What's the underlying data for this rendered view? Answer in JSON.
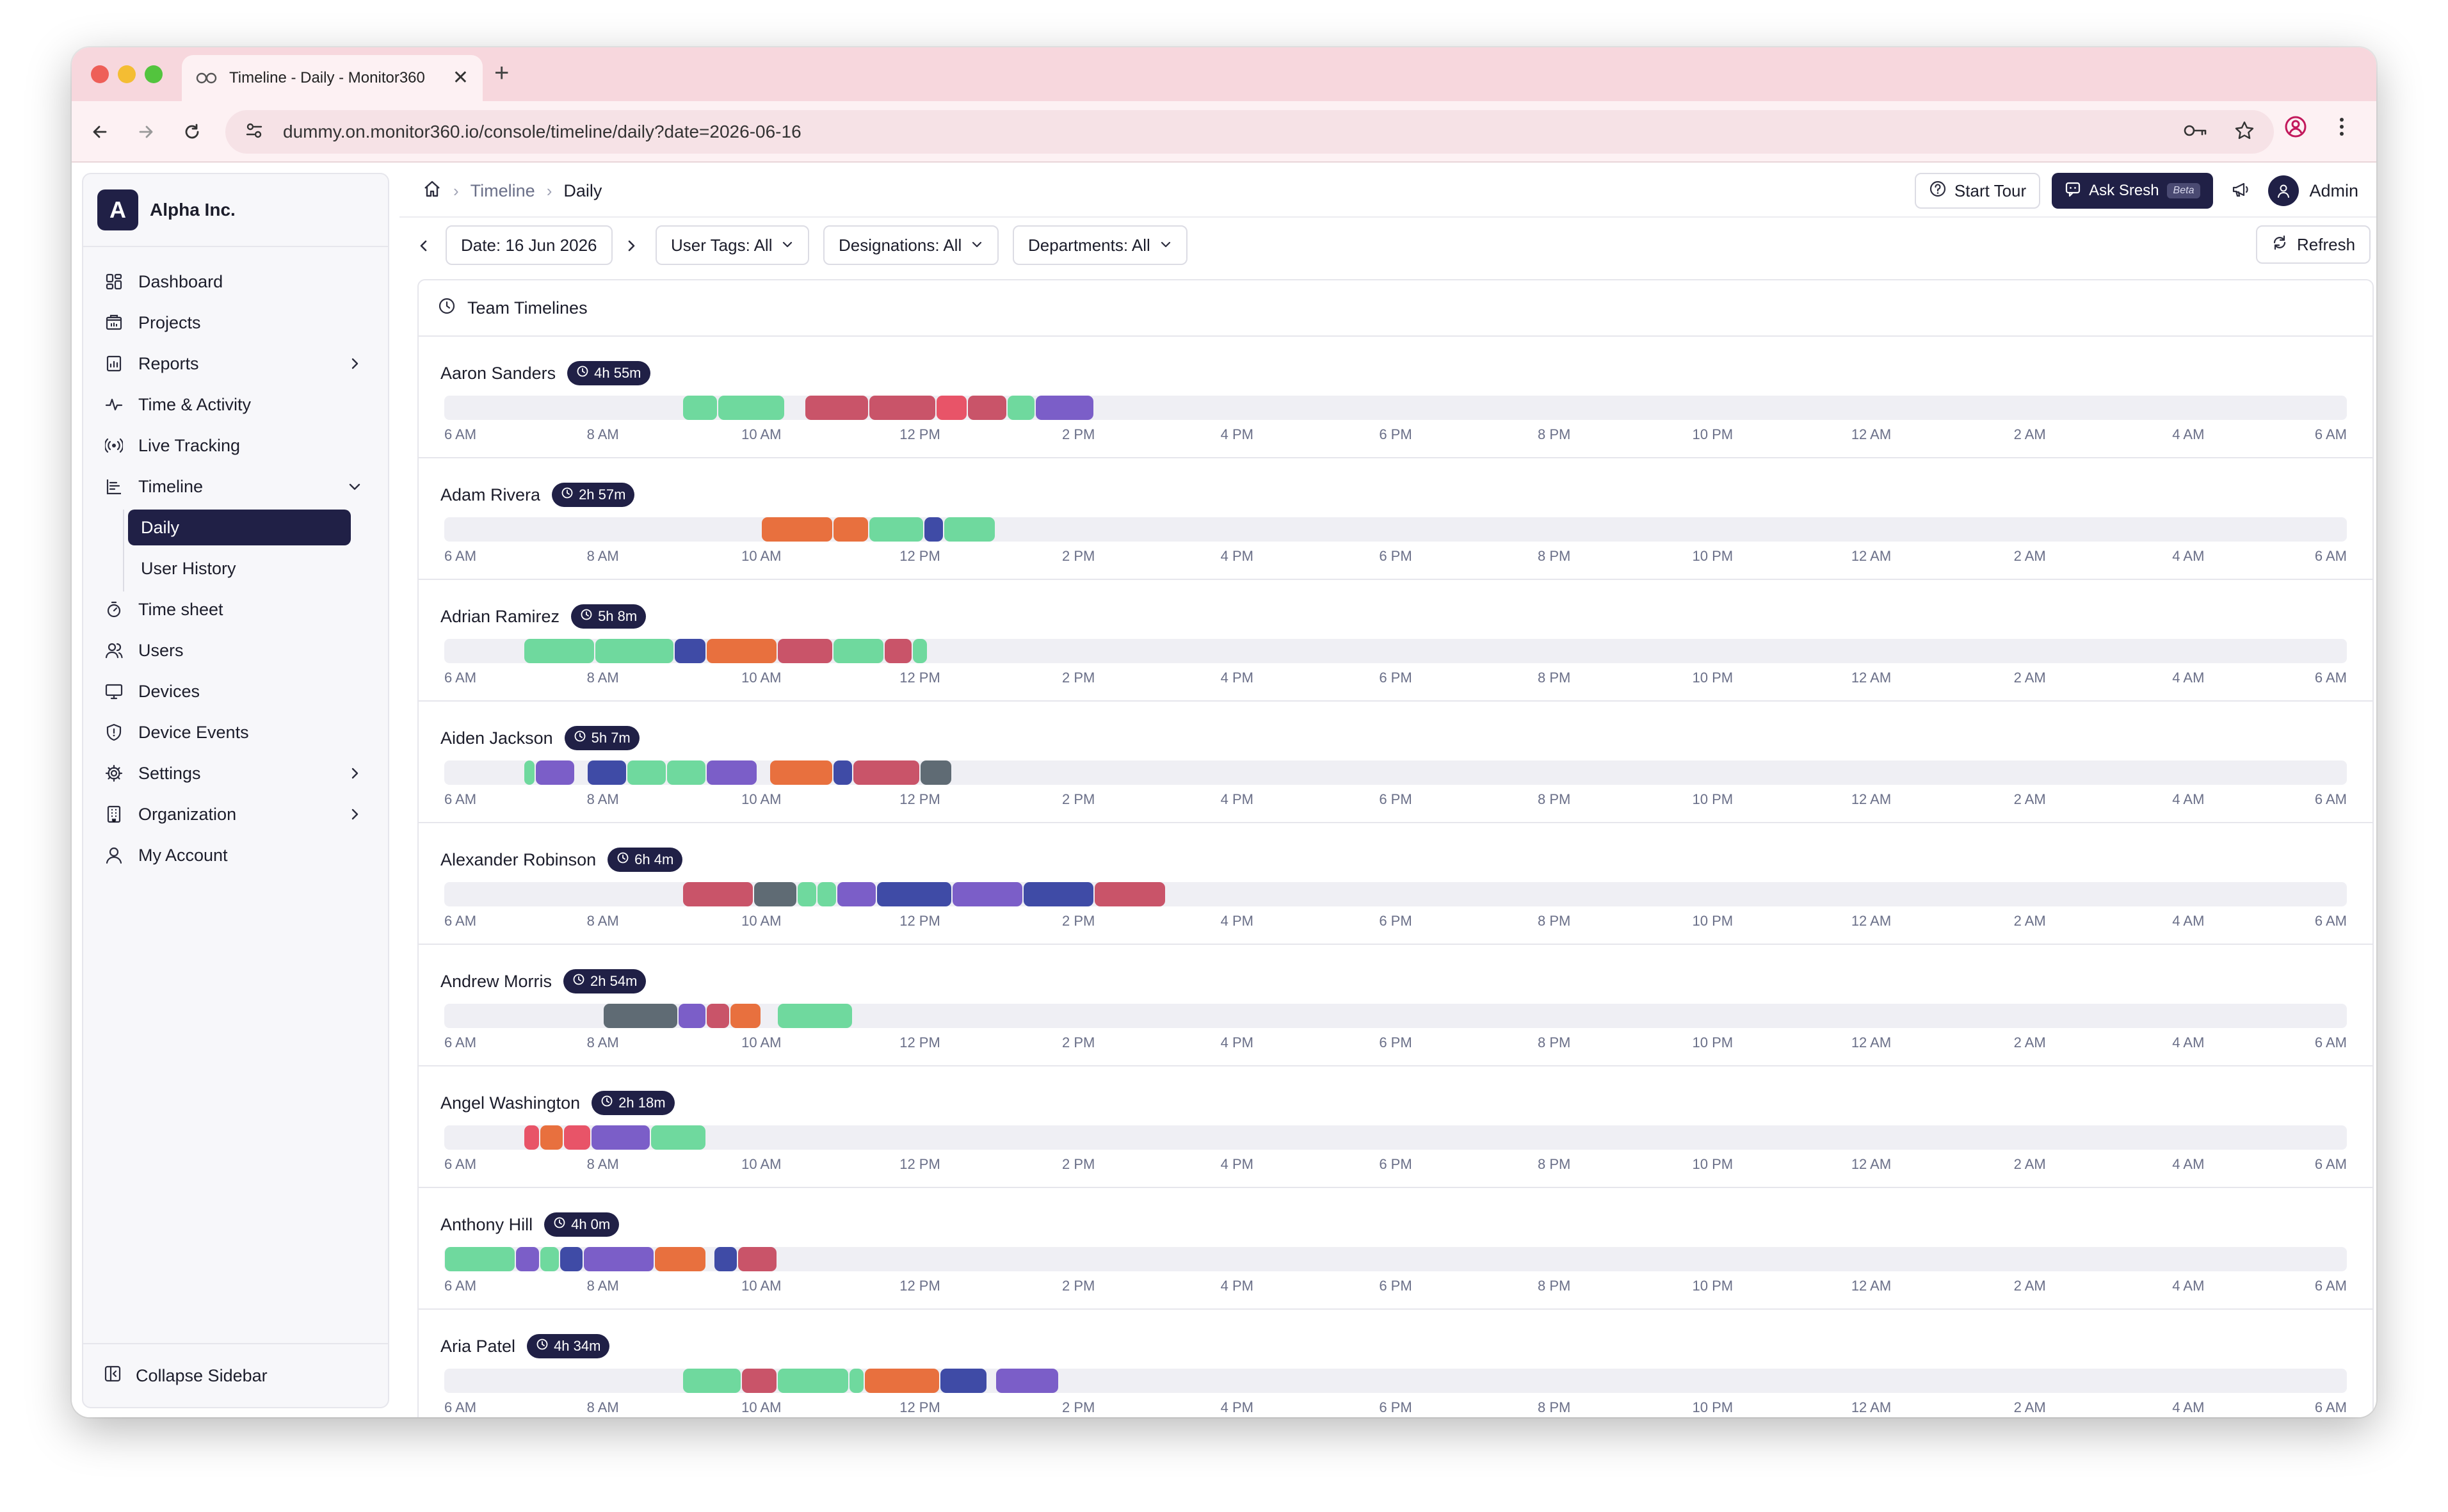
{
  "browser": {
    "tab_title": "Timeline - Daily - Monitor360",
    "tab_close": "✕",
    "new_tab": "+",
    "url": "dummy.on.monitor360.io/console/timeline/daily?date=2026-06-16"
  },
  "sidebar": {
    "brand_initial": "A",
    "brand_name": "Alpha Inc.",
    "items": [
      {
        "label": "Dashboard",
        "icon": "dashboard-icon"
      },
      {
        "label": "Projects",
        "icon": "projects-icon"
      },
      {
        "label": "Reports",
        "icon": "reports-icon"
      },
      {
        "label": "Time & Activity",
        "icon": "activity-icon"
      },
      {
        "label": "Live Tracking",
        "icon": "live-tracking-icon"
      },
      {
        "label": "Timeline",
        "icon": "timeline-icon"
      },
      {
        "label": "Time sheet",
        "icon": "timer-icon"
      },
      {
        "label": "Users",
        "icon": "users-icon"
      },
      {
        "label": "Devices",
        "icon": "monitor-icon"
      },
      {
        "label": "Device Events",
        "icon": "shield-icon"
      },
      {
        "label": "Settings",
        "icon": "gear-icon"
      },
      {
        "label": "Organization",
        "icon": "building-icon"
      },
      {
        "label": "My Account",
        "icon": "user-icon"
      }
    ],
    "timeline_sub": [
      "Daily",
      "User History"
    ],
    "collapse_label": "Collapse Sidebar"
  },
  "header": {
    "breadcrumb": [
      "Timeline",
      "Daily"
    ],
    "start_tour": "Start Tour",
    "ask": "Ask Sresh",
    "beta": "Beta",
    "user": "Admin"
  },
  "filters": {
    "date": "Date: 16 Jun 2026",
    "user_tags": "User Tags: All",
    "designations": "Designations: All",
    "departments": "Departments: All",
    "refresh": "Refresh"
  },
  "timeline": {
    "title": "Team Timelines",
    "axis_start_hour": 6,
    "axis_span_hours": 24,
    "tick_labels": [
      "6 AM",
      "8 AM",
      "10 AM",
      "12 PM",
      "2 PM",
      "4 PM",
      "6 PM",
      "8 PM",
      "10 PM",
      "12 AM",
      "2 AM",
      "4 AM",
      "6 AM"
    ],
    "colors": {
      "green": "#6fd99e",
      "red": "#c95469",
      "crimson": "#e85468",
      "orange": "#e8703e",
      "blue": "#3f4ba6",
      "purple": "#7b5ec8",
      "gray": "#5f6b74"
    },
    "users": [
      {
        "name": "Aaron Sanders",
        "total": "4h 55m",
        "segments": [
          {
            "start": 9.0,
            "end": 9.45,
            "color": "green"
          },
          {
            "start": 9.45,
            "end": 10.3,
            "color": "green"
          },
          {
            "start": 10.55,
            "end": 11.35,
            "color": "red"
          },
          {
            "start": 11.35,
            "end": 12.2,
            "color": "red"
          },
          {
            "start": 12.2,
            "end": 12.6,
            "color": "crimson"
          },
          {
            "start": 12.6,
            "end": 13.1,
            "color": "red"
          },
          {
            "start": 13.1,
            "end": 13.45,
            "color": "green"
          },
          {
            "start": 13.45,
            "end": 14.2,
            "color": "purple"
          }
        ]
      },
      {
        "name": "Adam Rivera",
        "total": "2h 57m",
        "segments": [
          {
            "start": 10.0,
            "end": 10.9,
            "color": "orange"
          },
          {
            "start": 10.9,
            "end": 11.35,
            "color": "orange"
          },
          {
            "start": 11.35,
            "end": 12.05,
            "color": "green"
          },
          {
            "start": 12.05,
            "end": 12.3,
            "color": "blue"
          },
          {
            "start": 12.3,
            "end": 12.95,
            "color": "green"
          }
        ]
      },
      {
        "name": "Adrian Ramirez",
        "total": "5h 8m",
        "segments": [
          {
            "start": 7.0,
            "end": 7.9,
            "color": "green"
          },
          {
            "start": 7.9,
            "end": 8.9,
            "color": "green"
          },
          {
            "start": 8.9,
            "end": 9.3,
            "color": "blue"
          },
          {
            "start": 9.3,
            "end": 10.2,
            "color": "orange"
          },
          {
            "start": 10.2,
            "end": 10.9,
            "color": "red"
          },
          {
            "start": 10.9,
            "end": 11.55,
            "color": "green"
          },
          {
            "start": 11.55,
            "end": 11.9,
            "color": "red"
          },
          {
            "start": 11.9,
            "end": 12.1,
            "color": "green"
          }
        ]
      },
      {
        "name": "Aiden Jackson",
        "total": "5h 7m",
        "segments": [
          {
            "start": 7.0,
            "end": 7.15,
            "color": "green"
          },
          {
            "start": 7.15,
            "end": 7.65,
            "color": "purple"
          },
          {
            "start": 7.8,
            "end": 8.3,
            "color": "blue"
          },
          {
            "start": 8.3,
            "end": 8.8,
            "color": "green"
          },
          {
            "start": 8.8,
            "end": 9.3,
            "color": "green"
          },
          {
            "start": 9.3,
            "end": 9.95,
            "color": "purple"
          },
          {
            "start": 10.1,
            "end": 10.9,
            "color": "orange"
          },
          {
            "start": 10.9,
            "end": 11.15,
            "color": "blue"
          },
          {
            "start": 11.15,
            "end": 12.0,
            "color": "red"
          },
          {
            "start": 12.0,
            "end": 12.4,
            "color": "gray"
          }
        ]
      },
      {
        "name": "Alexander Robinson",
        "total": "6h 4m",
        "segments": [
          {
            "start": 9.0,
            "end": 9.9,
            "color": "red"
          },
          {
            "start": 9.9,
            "end": 10.45,
            "color": "gray"
          },
          {
            "start": 10.45,
            "end": 10.7,
            "color": "green"
          },
          {
            "start": 10.7,
            "end": 10.95,
            "color": "green"
          },
          {
            "start": 10.95,
            "end": 11.45,
            "color": "purple"
          },
          {
            "start": 11.45,
            "end": 12.4,
            "color": "blue"
          },
          {
            "start": 12.4,
            "end": 13.3,
            "color": "purple"
          },
          {
            "start": 13.3,
            "end": 14.2,
            "color": "blue"
          },
          {
            "start": 14.2,
            "end": 15.1,
            "color": "red"
          }
        ]
      },
      {
        "name": "Andrew Morris",
        "total": "2h 54m",
        "segments": [
          {
            "start": 8.0,
            "end": 8.95,
            "color": "gray"
          },
          {
            "start": 8.95,
            "end": 9.3,
            "color": "purple"
          },
          {
            "start": 9.3,
            "end": 9.6,
            "color": "red"
          },
          {
            "start": 9.6,
            "end": 10.0,
            "color": "orange"
          },
          {
            "start": 10.2,
            "end": 11.15,
            "color": "green"
          }
        ]
      },
      {
        "name": "Angel Washington",
        "total": "2h 18m",
        "segments": [
          {
            "start": 7.0,
            "end": 7.2,
            "color": "crimson"
          },
          {
            "start": 7.2,
            "end": 7.5,
            "color": "orange"
          },
          {
            "start": 7.5,
            "end": 7.85,
            "color": "crimson"
          },
          {
            "start": 7.85,
            "end": 8.6,
            "color": "purple"
          },
          {
            "start": 8.6,
            "end": 9.3,
            "color": "green"
          }
        ]
      },
      {
        "name": "Anthony Hill",
        "total": "4h 0m",
        "segments": [
          {
            "start": 6.0,
            "end": 6.9,
            "color": "green"
          },
          {
            "start": 6.9,
            "end": 7.2,
            "color": "purple"
          },
          {
            "start": 7.2,
            "end": 7.45,
            "color": "green"
          },
          {
            "start": 7.45,
            "end": 7.75,
            "color": "blue"
          },
          {
            "start": 7.75,
            "end": 8.65,
            "color": "purple"
          },
          {
            "start": 8.65,
            "end": 9.3,
            "color": "orange"
          },
          {
            "start": 9.4,
            "end": 9.7,
            "color": "blue"
          },
          {
            "start": 9.7,
            "end": 10.2,
            "color": "red"
          }
        ]
      },
      {
        "name": "Aria Patel",
        "total": "4h 34m",
        "segments": [
          {
            "start": 9.0,
            "end": 9.75,
            "color": "green"
          },
          {
            "start": 9.75,
            "end": 10.2,
            "color": "red"
          },
          {
            "start": 10.2,
            "end": 11.1,
            "color": "green"
          },
          {
            "start": 11.1,
            "end": 11.3,
            "color": "green"
          },
          {
            "start": 11.3,
            "end": 12.25,
            "color": "orange"
          },
          {
            "start": 12.25,
            "end": 12.85,
            "color": "blue"
          },
          {
            "start": 12.95,
            "end": 13.75,
            "color": "purple"
          }
        ]
      }
    ]
  }
}
